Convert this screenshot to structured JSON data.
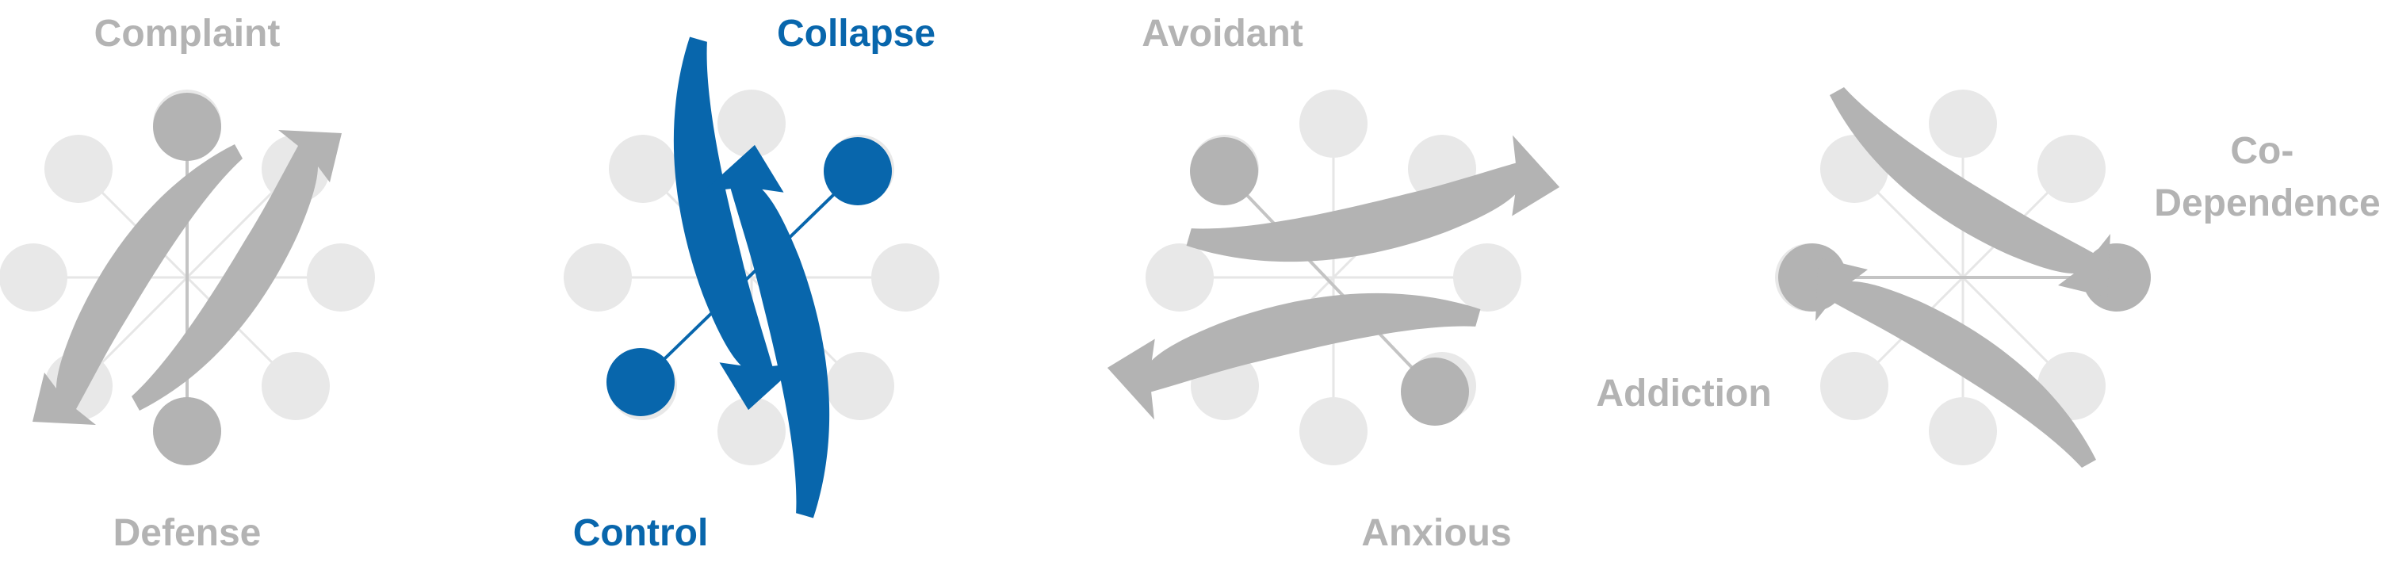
{
  "colors": {
    "accent": "#0866ac",
    "active_gray": "#b3b3b3",
    "inactive_gray": "#e8e8e8",
    "spoke_gray": "#e6e6e6",
    "axis_gray": "#c4c4c4"
  },
  "diagrams": [
    {
      "id": "defense-complaint",
      "highlight": "gray",
      "labels": {
        "top": "Complaint",
        "bottom": "Defense"
      }
    },
    {
      "id": "control-collapse",
      "highlight": "blue",
      "labels": {
        "top": "Collapse",
        "bottom": "Control"
      }
    },
    {
      "id": "avoidant-anxious",
      "highlight": "gray",
      "labels": {
        "top": "Avoidant",
        "bottom": "Anxious"
      }
    },
    {
      "id": "addiction-codependence",
      "highlight": "gray",
      "labels": {
        "right_line1": "Co-",
        "right_line2": "Dependence",
        "left": "Addiction"
      }
    }
  ]
}
